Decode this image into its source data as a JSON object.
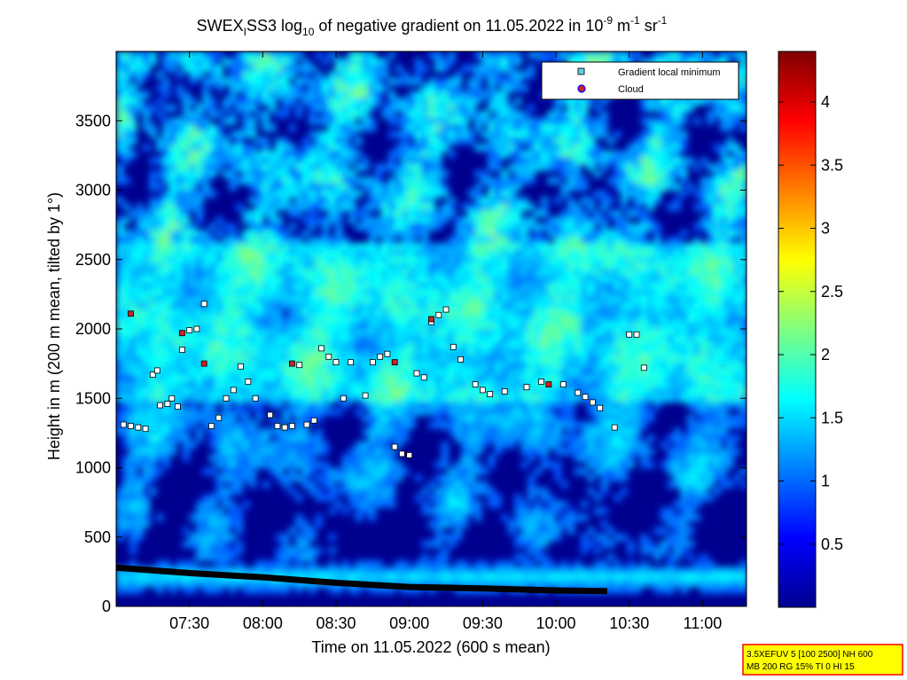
{
  "chart_data": {
    "type": "heatmap",
    "title": {
      "prefix": "SWEX",
      "sub1": "I",
      "mid": "SS3 log",
      "sub2": "10",
      "mid2": " of negative gradient on 11.05.2022 in 10",
      "sup1": "-9",
      "mid3": " m",
      "sup2": "-1",
      "mid4": " sr",
      "sup3": "-1"
    },
    "xlabel": "Time on 11.05.2022 (600 s mean)",
    "ylabel": "Height in m (200 m mean, tilted by 1°)",
    "xlim_hours": [
      7.0,
      11.3
    ],
    "xticks": [
      "07:30",
      "08:00",
      "08:30",
      "09:00",
      "09:30",
      "10:00",
      "10:30",
      "11:00"
    ],
    "ylim": [
      0,
      4000
    ],
    "yticks": [
      0,
      500,
      1000,
      1500,
      2000,
      2500,
      3000,
      3500
    ],
    "colorbar": {
      "range": [
        0,
        4.4
      ],
      "ticks": [
        0.5,
        1,
        1.5,
        2,
        2.5,
        3,
        3.5,
        4
      ]
    },
    "legend": {
      "placement": "top-right",
      "entries": [
        {
          "label": "Gradient local minimum",
          "marker": "square",
          "color": "#5fd0e0"
        },
        {
          "label": "Cloud",
          "marker": "circle",
          "color": "#d02020"
        }
      ]
    },
    "series": [
      {
        "name": "Gradient local minimum",
        "points": [
          [
            7.05,
            1310
          ],
          [
            7.1,
            1300
          ],
          [
            7.15,
            1290
          ],
          [
            7.2,
            1280
          ],
          [
            7.25,
            1670
          ],
          [
            7.28,
            1700
          ],
          [
            7.3,
            1450
          ],
          [
            7.35,
            1460
          ],
          [
            7.38,
            1500
          ],
          [
            7.42,
            1440
          ],
          [
            7.45,
            1850
          ],
          [
            7.5,
            1990
          ],
          [
            7.55,
            2000
          ],
          [
            7.6,
            2180
          ],
          [
            7.65,
            1300
          ],
          [
            7.7,
            1360
          ],
          [
            7.75,
            1500
          ],
          [
            7.8,
            1560
          ],
          [
            7.85,
            1730
          ],
          [
            7.9,
            1620
          ],
          [
            7.95,
            1500
          ],
          [
            8.05,
            1380
          ],
          [
            8.1,
            1300
          ],
          [
            8.15,
            1290
          ],
          [
            8.2,
            1300
          ],
          [
            8.25,
            1740
          ],
          [
            8.3,
            1310
          ],
          [
            8.35,
            1340
          ],
          [
            8.4,
            1860
          ],
          [
            8.45,
            1800
          ],
          [
            8.5,
            1760
          ],
          [
            8.55,
            1500
          ],
          [
            8.6,
            1760
          ],
          [
            8.7,
            1520
          ],
          [
            8.75,
            1760
          ],
          [
            8.8,
            1800
          ],
          [
            8.85,
            1820
          ],
          [
            8.9,
            1150
          ],
          [
            8.95,
            1100
          ],
          [
            9.0,
            1090
          ],
          [
            9.05,
            1680
          ],
          [
            9.1,
            1650
          ],
          [
            9.15,
            2050
          ],
          [
            9.2,
            2100
          ],
          [
            9.25,
            2140
          ],
          [
            9.3,
            1870
          ],
          [
            9.35,
            1780
          ],
          [
            9.45,
            1600
          ],
          [
            9.5,
            1560
          ],
          [
            9.55,
            1530
          ],
          [
            9.65,
            1550
          ],
          [
            9.8,
            1580
          ],
          [
            9.9,
            1620
          ],
          [
            10.05,
            1600
          ],
          [
            10.15,
            1540
          ],
          [
            10.2,
            1510
          ],
          [
            10.25,
            1470
          ],
          [
            10.3,
            1430
          ],
          [
            10.4,
            1290
          ],
          [
            10.5,
            1960
          ],
          [
            10.55,
            1960
          ],
          [
            10.6,
            1720
          ]
        ]
      },
      {
        "name": "Cloud",
        "points": [
          [
            7.1,
            2110
          ],
          [
            7.45,
            1970
          ],
          [
            7.6,
            1750
          ],
          [
            8.2,
            1750
          ],
          [
            8.9,
            1760
          ],
          [
            9.15,
            2070
          ],
          [
            9.95,
            1600
          ]
        ]
      }
    ],
    "ground_layer": {
      "x": [
        7.0,
        7.5,
        8.0,
        8.5,
        9.0,
        9.5,
        10.0,
        10.35
      ],
      "y": [
        280,
        240,
        210,
        170,
        140,
        130,
        115,
        110
      ]
    }
  },
  "info_box": {
    "line1": "3.5XEFUV 5 [100 2500] NH 600",
    "line2": "MB 200 RG 15% TI 0 HI 15"
  },
  "colors": {
    "deep_blue": "#00008f",
    "blue": "#0000ff",
    "cyan": "#00ffff",
    "yellow": "#ffff00",
    "red": "#ff0000",
    "dark_red": "#800000",
    "info_bg": "#ffff00",
    "info_border": "#ff0000"
  }
}
